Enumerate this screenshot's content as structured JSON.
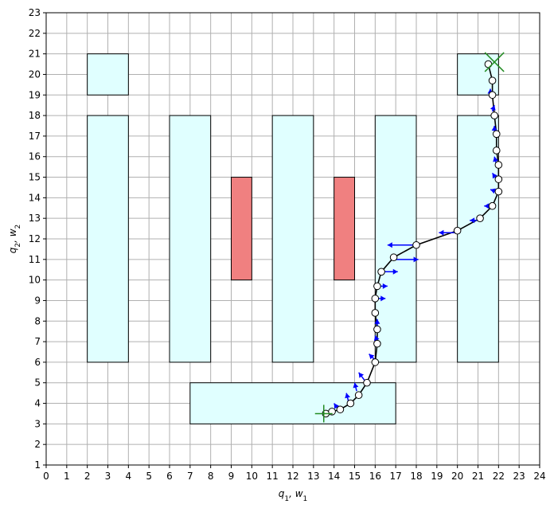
{
  "chart_data": {
    "type": "scatter",
    "xlabel": "q_1, w_1",
    "ylabel": "q_2, w_2",
    "xlim": [
      0,
      24
    ],
    "ylim": [
      1,
      23
    ],
    "xticks": [
      0,
      1,
      2,
      3,
      4,
      5,
      6,
      7,
      8,
      9,
      10,
      11,
      12,
      13,
      14,
      15,
      16,
      17,
      18,
      19,
      20,
      21,
      22,
      23,
      24
    ],
    "yticks": [
      1,
      2,
      3,
      4,
      5,
      6,
      7,
      8,
      9,
      10,
      11,
      12,
      13,
      14,
      15,
      16,
      17,
      18,
      19,
      20,
      21,
      22,
      23
    ],
    "grid": true,
    "free_regions": [
      {
        "x": [
          2,
          4
        ],
        "y": [
          19,
          21
        ]
      },
      {
        "x": [
          20,
          22
        ],
        "y": [
          19,
          21
        ]
      },
      {
        "x": [
          2,
          4
        ],
        "y": [
          6,
          18
        ]
      },
      {
        "x": [
          6,
          8
        ],
        "y": [
          6,
          18
        ]
      },
      {
        "x": [
          11,
          13
        ],
        "y": [
          6,
          18
        ]
      },
      {
        "x": [
          16,
          18
        ],
        "y": [
          6,
          18
        ]
      },
      {
        "x": [
          20,
          22
        ],
        "y": [
          6,
          18
        ]
      },
      {
        "x": [
          7,
          17
        ],
        "y": [
          3,
          5
        ]
      }
    ],
    "obstacles": [
      {
        "x": [
          9,
          10
        ],
        "y": [
          10,
          15
        ]
      },
      {
        "x": [
          14,
          15
        ],
        "y": [
          10,
          15
        ]
      }
    ],
    "path": {
      "x": [
        13.6,
        13.9,
        14.3,
        14.8,
        15.2,
        15.6,
        16.0,
        16.1,
        16.1,
        16.0,
        16.0,
        16.1,
        16.3,
        16.9,
        18.0,
        20.0,
        21.1,
        21.7,
        22.0,
        22.0,
        22.0,
        21.9,
        21.9,
        21.8,
        21.7,
        21.7,
        21.5
      ],
      "y": [
        3.5,
        3.6,
        3.7,
        4.0,
        4.4,
        5.0,
        6.0,
        6.9,
        7.6,
        8.4,
        9.1,
        9.7,
        10.4,
        11.1,
        11.7,
        12.4,
        13.0,
        13.6,
        14.3,
        14.9,
        15.6,
        16.3,
        17.1,
        18.0,
        19.0,
        19.7,
        20.5
      ]
    },
    "arrows": [
      {
        "x": 14.2,
        "y": 3.7,
        "dx": -0.2,
        "dy": 0.3
      },
      {
        "x": 14.7,
        "y": 4.1,
        "dx": -0.1,
        "dy": 0.4
      },
      {
        "x": 15.1,
        "y": 4.6,
        "dx": -0.1,
        "dy": 0.4
      },
      {
        "x": 15.5,
        "y": 5.1,
        "dx": -0.3,
        "dy": 0.4
      },
      {
        "x": 16.0,
        "y": 6.1,
        "dx": -0.3,
        "dy": 0.3
      },
      {
        "x": 16.1,
        "y": 7.0,
        "dx": -0.1,
        "dy": 0.3
      },
      {
        "x": 16.1,
        "y": 7.7,
        "dx": 0.0,
        "dy": 0.4
      },
      {
        "x": 16.1,
        "y": 9.1,
        "dx": 0.4,
        "dy": 0.0
      },
      {
        "x": 16.1,
        "y": 9.7,
        "dx": 0.5,
        "dy": 0.0
      },
      {
        "x": 16.3,
        "y": 10.4,
        "dx": 0.8,
        "dy": 0.0
      },
      {
        "x": 16.9,
        "y": 11.0,
        "dx": 1.2,
        "dy": 0.0
      },
      {
        "x": 17.9,
        "y": 11.7,
        "dx": -1.3,
        "dy": 0.0
      },
      {
        "x": 20.0,
        "y": 12.3,
        "dx": -0.9,
        "dy": 0.0
      },
      {
        "x": 21.1,
        "y": 12.9,
        "dx": -0.5,
        "dy": 0.0
      },
      {
        "x": 21.7,
        "y": 13.6,
        "dx": -0.4,
        "dy": 0.0
      },
      {
        "x": 21.9,
        "y": 14.3,
        "dx": -0.3,
        "dy": 0.1
      },
      {
        "x": 21.9,
        "y": 14.9,
        "dx": -0.2,
        "dy": 0.3
      },
      {
        "x": 21.9,
        "y": 15.6,
        "dx": -0.1,
        "dy": 0.4
      },
      {
        "x": 21.8,
        "y": 17.1,
        "dx": 0.0,
        "dy": 0.4
      },
      {
        "x": 21.7,
        "y": 18.2,
        "dx": 0.1,
        "dy": 0.3
      },
      {
        "x": 21.6,
        "y": 18.9,
        "dx": 0.0,
        "dy": 0.4
      }
    ],
    "start": {
      "x": 13.5,
      "y": 3.5
    },
    "goal": {
      "x": 21.8,
      "y": 20.6
    },
    "colors": {
      "free_fill": "#e0ffff",
      "obstacle_fill": "#f08080",
      "path": "#000000",
      "point_fill": "#ffffff",
      "arrow": "#0000ff",
      "marker": "#228b22",
      "grid": "#b0b0b0"
    }
  }
}
